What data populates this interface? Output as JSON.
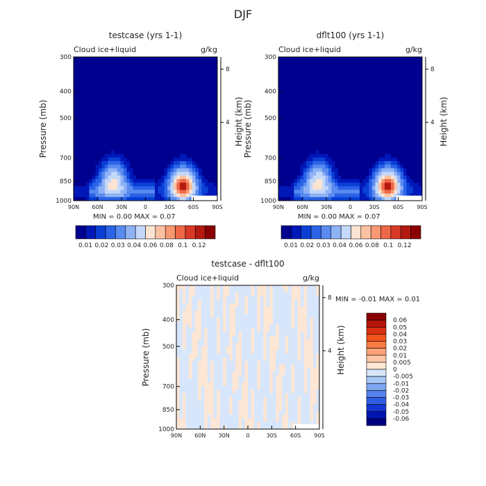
{
  "season": "DJF",
  "panels": [
    {
      "id": "testcase",
      "title": "testcase (yrs 1-1)",
      "variable": "Cloud ice+liquid",
      "units": "g/kg",
      "ylabel": "Pressure (mb)",
      "ylabel_right": "Height (km)",
      "pressure_ticks": [
        "300",
        "400",
        "500",
        "700",
        "850",
        "1000"
      ],
      "height_ticks": [
        "8",
        "4"
      ],
      "lat_ticks": [
        "90N",
        "60N",
        "30N",
        "0",
        "30S",
        "60S",
        "90S"
      ],
      "min_label": "MIN =",
      "min_value": "0.00",
      "max_label": "MAX =",
      "max_value": "0.07",
      "colorbar_labels": [
        "0.01",
        "0.02",
        "0.03",
        "0.04",
        "0.06",
        "0.08",
        "0.1",
        "0.12"
      ]
    },
    {
      "id": "dflt100",
      "title": "dflt100 (yrs 1-1)",
      "variable": "Cloud ice+liquid",
      "units": "g/kg",
      "ylabel": "Pressure (mb)",
      "ylabel_right": "Height (km)",
      "pressure_ticks": [
        "300",
        "400",
        "500",
        "700",
        "850",
        "1000"
      ],
      "height_ticks": [
        "8",
        "4"
      ],
      "lat_ticks": [
        "90N",
        "60N",
        "30N",
        "0",
        "30S",
        "60S",
        "90S"
      ],
      "min_label": "MIN =",
      "min_value": "0.00",
      "max_label": "MAX =",
      "max_value": "0.07",
      "colorbar_labels": [
        "0.01",
        "0.02",
        "0.03",
        "0.04",
        "0.06",
        "0.08",
        "0.1",
        "0.12"
      ]
    },
    {
      "id": "diff",
      "title": "testcase - dflt100",
      "variable": "Cloud ice+liquid",
      "units": "g/kg",
      "ylabel": "Pressure (mb)",
      "ylabel_right": "Height (km)",
      "pressure_ticks": [
        "300",
        "400",
        "500",
        "700",
        "850",
        "1000"
      ],
      "height_ticks": [
        "8",
        "4"
      ],
      "lat_ticks": [
        "90N",
        "60N",
        "30N",
        "0",
        "30S",
        "60S",
        "90S"
      ],
      "min_label": "MIN =",
      "min_value": "-0.01",
      "max_label": "MAX =",
      "max_value": "0.01",
      "colorbar_labels": [
        "0.06",
        "0.05",
        "0.04",
        "0.03",
        "0.02",
        "0.01",
        "0.005",
        "0",
        "-0.005",
        "-0.01",
        "-0.02",
        "-0.03",
        "-0.04",
        "-0.05",
        "-0.06"
      ]
    }
  ],
  "colors": {
    "main_scale": [
      "#00008f",
      "#0018b8",
      "#0a3fd6",
      "#2a63e6",
      "#5a8bf0",
      "#8fb2f5",
      "#c3d8fa",
      "#fde3d2",
      "#fbc2a2",
      "#f79873",
      "#ee6747",
      "#d83a26",
      "#b41a10",
      "#8a0000"
    ],
    "diff_scale": [
      "#8a0000",
      "#b51508",
      "#d8300f",
      "#f2541d",
      "#fa7a44",
      "#fba276",
      "#fcc6a6",
      "#fde6d4",
      "#d7e6fb",
      "#a7c5f5",
      "#7ea6f1",
      "#5583ec",
      "#2f5ee6",
      "#1536d3",
      "#0015b0",
      "#000080"
    ],
    "diff_pos": "#fde6d4",
    "diff_neg": "#d7e6fb"
  },
  "chart_data": [
    {
      "type": "heatmap",
      "title": "testcase (yrs 1-1)",
      "subtitle": "Cloud ice+liquid  g/kg",
      "xlabel": "",
      "ylabel": "Pressure (mb)",
      "x_ticks": [
        "90N",
        "60N",
        "30N",
        "0",
        "30S",
        "60S",
        "90S"
      ],
      "y_ticks": [
        300,
        400,
        500,
        700,
        850,
        1000
      ],
      "ylim": [
        1000,
        300
      ],
      "min": 0.0,
      "max": 0.07,
      "levels": [
        0.01,
        0.02,
        0.03,
        0.04,
        0.06,
        0.08,
        0.1,
        0.12
      ],
      "features": [
        {
          "lat": 40,
          "p": 840,
          "peak": 0.04
        },
        {
          "lat": -47,
          "p": 880,
          "peak": 0.07
        }
      ]
    },
    {
      "type": "heatmap",
      "title": "dflt100 (yrs 1-1)",
      "subtitle": "Cloud ice+liquid  g/kg",
      "xlabel": "",
      "ylabel": "Pressure (mb)",
      "x_ticks": [
        "90N",
        "60N",
        "30N",
        "0",
        "30S",
        "60S",
        "90S"
      ],
      "y_ticks": [
        300,
        400,
        500,
        700,
        850,
        1000
      ],
      "ylim": [
        1000,
        300
      ],
      "min": 0.0,
      "max": 0.07,
      "levels": [
        0.01,
        0.02,
        0.03,
        0.04,
        0.06,
        0.08,
        0.1,
        0.12
      ],
      "features": [
        {
          "lat": 40,
          "p": 840,
          "peak": 0.04
        },
        {
          "lat": -47,
          "p": 880,
          "peak": 0.07
        }
      ]
    },
    {
      "type": "heatmap",
      "title": "testcase - dflt100",
      "subtitle": "Cloud ice+liquid  g/kg",
      "xlabel": "",
      "ylabel": "Pressure (mb)",
      "x_ticks": [
        "90N",
        "60N",
        "30N",
        "0",
        "30S",
        "60S",
        "90S"
      ],
      "y_ticks": [
        300,
        400,
        500,
        700,
        850,
        1000
      ],
      "ylim": [
        1000,
        300
      ],
      "min": -0.01,
      "max": 0.01,
      "levels": [
        -0.06,
        -0.05,
        -0.04,
        -0.03,
        -0.02,
        -0.01,
        -0.005,
        0,
        0.005,
        0.01,
        0.02,
        0.03,
        0.04,
        0.05,
        0.06
      ]
    }
  ]
}
